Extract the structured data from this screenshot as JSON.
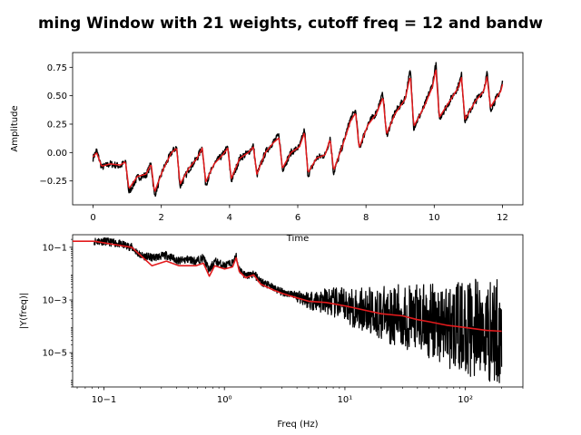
{
  "figure_title": "ming Window with 21 weights, cutoff freq = 12 and bandw",
  "colors": {
    "raw": "#000000",
    "filtered": "#e31a1c"
  },
  "chart_data": [
    {
      "type": "line",
      "xlabel": "Time",
      "ylabel": "Amplitude",
      "xlim": [
        -0.6,
        12.6
      ],
      "ylim": [
        -0.46,
        0.88
      ],
      "xticks": [
        0,
        2,
        4,
        6,
        8,
        10,
        12
      ],
      "xtick_labels": [
        "0",
        "2",
        "4",
        "6",
        "8",
        "10",
        "12"
      ],
      "yticks": [
        -0.25,
        0.0,
        0.25,
        0.5,
        0.75
      ],
      "ytick_labels": [
        "−0.25",
        "0.00",
        "0.25",
        "0.50",
        "0.75"
      ],
      "series": [
        {
          "role": "raw",
          "color": "#000000",
          "noise_amplitude": 0.03,
          "x": [
            0,
            0.1,
            0.25,
            0.5,
            0.8,
            0.95,
            1.05,
            1.3,
            1.55,
            1.7,
            1.8,
            2.05,
            2.3,
            2.45,
            2.55,
            2.8,
            3.05,
            3.2,
            3.3,
            3.55,
            3.8,
            3.95,
            4.05,
            4.3,
            4.55,
            4.7,
            4.8,
            5.05,
            5.3,
            5.45,
            5.55,
            5.8,
            6.05,
            6.2,
            6.3,
            6.55,
            6.8,
            6.95,
            7.05,
            7.3,
            7.55,
            7.7,
            7.8,
            8.05,
            8.3,
            8.5,
            8.6,
            8.85,
            9.15,
            9.3,
            9.4,
            9.7,
            9.95,
            10.05,
            10.15,
            10.45,
            10.7,
            10.8,
            10.9,
            11.2,
            11.45,
            11.55,
            11.65,
            11.95,
            12.0
          ],
          "y": [
            -0.05,
            0.02,
            -0.13,
            -0.1,
            -0.12,
            -0.08,
            -0.35,
            -0.22,
            -0.2,
            -0.1,
            -0.38,
            -0.15,
            0.0,
            0.05,
            -0.3,
            -0.15,
            -0.05,
            0.05,
            -0.28,
            -0.1,
            -0.02,
            0.05,
            -0.25,
            -0.05,
            0.0,
            0.06,
            -0.2,
            0.0,
            0.1,
            0.15,
            -0.15,
            0.0,
            0.05,
            0.2,
            -0.2,
            -0.05,
            -0.02,
            0.13,
            -0.18,
            0.05,
            0.3,
            0.37,
            0.03,
            0.25,
            0.35,
            0.52,
            0.15,
            0.35,
            0.48,
            0.72,
            0.22,
            0.4,
            0.6,
            0.78,
            0.3,
            0.45,
            0.58,
            0.68,
            0.28,
            0.45,
            0.55,
            0.7,
            0.38,
            0.55,
            0.62
          ]
        },
        {
          "role": "filtered",
          "color": "#e31a1c",
          "x": [
            0,
            0.1,
            0.25,
            0.5,
            0.8,
            0.95,
            1.05,
            1.3,
            1.55,
            1.7,
            1.8,
            2.05,
            2.3,
            2.45,
            2.55,
            2.8,
            3.05,
            3.2,
            3.3,
            3.55,
            3.8,
            3.95,
            4.05,
            4.3,
            4.55,
            4.7,
            4.8,
            5.05,
            5.3,
            5.45,
            5.55,
            5.8,
            6.05,
            6.2,
            6.3,
            6.55,
            6.8,
            6.95,
            7.05,
            7.3,
            7.55,
            7.7,
            7.8,
            8.05,
            8.3,
            8.5,
            8.6,
            8.85,
            9.15,
            9.3,
            9.4,
            9.7,
            9.95,
            10.05,
            10.15,
            10.45,
            10.7,
            10.8,
            10.9,
            11.2,
            11.45,
            11.55,
            11.65,
            11.95,
            12.0
          ],
          "y": [
            -0.04,
            0.0,
            -0.12,
            -0.1,
            -0.11,
            -0.08,
            -0.32,
            -0.21,
            -0.19,
            -0.1,
            -0.35,
            -0.15,
            0.0,
            0.04,
            -0.28,
            -0.14,
            -0.05,
            0.04,
            -0.26,
            -0.1,
            -0.02,
            0.04,
            -0.23,
            -0.05,
            0.0,
            0.05,
            -0.19,
            0.0,
            0.09,
            0.13,
            -0.14,
            0.0,
            0.05,
            0.18,
            -0.18,
            -0.05,
            -0.02,
            0.12,
            -0.16,
            0.05,
            0.28,
            0.35,
            0.04,
            0.24,
            0.34,
            0.49,
            0.16,
            0.34,
            0.47,
            0.68,
            0.23,
            0.4,
            0.58,
            0.74,
            0.31,
            0.45,
            0.57,
            0.66,
            0.29,
            0.45,
            0.54,
            0.67,
            0.4,
            0.54,
            0.6
          ]
        }
      ]
    },
    {
      "type": "line",
      "xlabel": "Freq (Hz)",
      "ylabel": "|Y(freq)|",
      "xscale": "log",
      "yscale": "log",
      "xlim": [
        0.055,
        300
      ],
      "ylim": [
        5e-07,
        0.3
      ],
      "xticks": [
        0.1,
        1,
        10,
        100
      ],
      "xtick_labels": [
        "10−1",
        "10⁰",
        "10¹",
        "10²"
      ],
      "yticks": [
        1e-05,
        0.001,
        0.1
      ],
      "ytick_labels": [
        "10−5",
        "10−3",
        "10−1"
      ],
      "series": [
        {
          "role": "raw",
          "color": "#000000",
          "x": [
            0.083,
            0.1,
            0.13,
            0.17,
            0.2,
            0.25,
            0.33,
            0.42,
            0.5,
            0.58,
            0.67,
            0.75,
            0.83,
            1.0,
            1.17,
            1.25,
            1.33,
            1.5,
            1.75,
            2.0,
            2.5,
            3.0,
            4.0,
            5.0,
            7.0,
            10,
            15,
            20,
            30,
            40,
            50,
            60,
            70,
            100,
            150,
            200
          ],
          "y": [
            0.17,
            0.17,
            0.14,
            0.1,
            0.05,
            0.04,
            0.05,
            0.03,
            0.035,
            0.03,
            0.04,
            0.013,
            0.03,
            0.02,
            0.025,
            0.045,
            0.015,
            0.008,
            0.01,
            0.005,
            0.003,
            0.002,
            0.0015,
            0.001,
            0.0009,
            0.0006,
            0.0004,
            0.0003,
            0.00025,
            0.00018,
            0.00015,
            0.00012,
            0.0001,
            9e-05,
            7e-05,
            6.5e-05
          ]
        },
        {
          "role": "filtered",
          "color": "#e31a1c",
          "x": [
            0.055,
            0.083,
            0.17,
            0.25,
            0.33,
            0.42,
            0.5,
            0.58,
            0.67,
            0.75,
            0.83,
            1.0,
            1.17,
            1.25,
            1.33,
            1.5,
            1.75,
            2.0,
            2.5,
            3.0,
            4.0,
            5.0,
            7.0,
            10,
            15,
            20,
            30,
            40,
            50,
            70,
            100,
            150,
            200
          ],
          "y": [
            0.17,
            0.17,
            0.1,
            0.02,
            0.03,
            0.02,
            0.02,
            0.02,
            0.025,
            0.008,
            0.02,
            0.015,
            0.018,
            0.04,
            0.012,
            0.007,
            0.009,
            0.004,
            0.0025,
            0.0018,
            0.0012,
            0.0009,
            0.0008,
            0.0006,
            0.0004,
            0.0003,
            0.00025,
            0.00018,
            0.00015,
            0.00011,
            9e-05,
            7e-05,
            6.5e-05
          ]
        }
      ]
    }
  ]
}
